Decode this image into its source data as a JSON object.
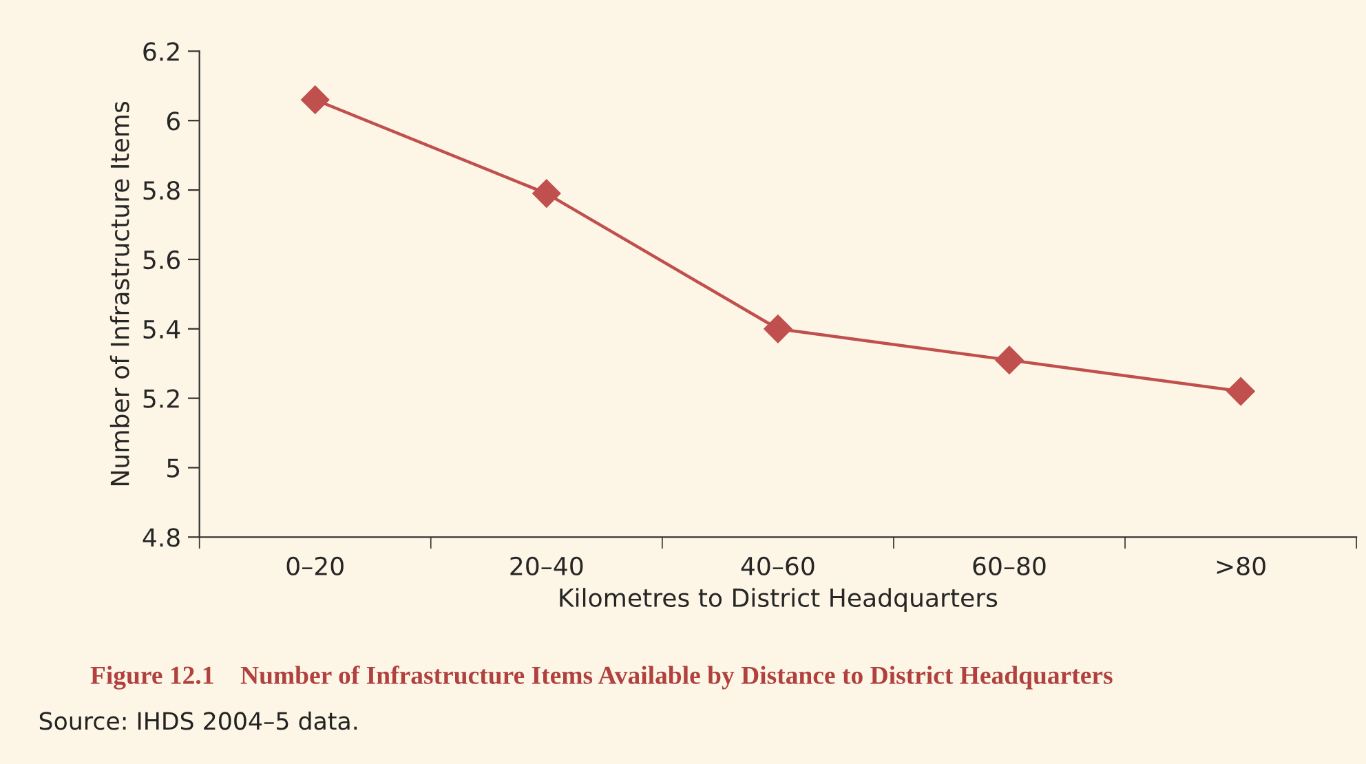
{
  "chart_data": {
    "type": "line",
    "title": "Figure 12.1    Number of Infrastructure Items Available by Distance to District Headquarters",
    "xlabel": "Kilometres to District Headquarters",
    "ylabel": "Number of Infrastructure Items",
    "categories": [
      "0–20",
      "20–40",
      "40–60",
      "60–80",
      ">80"
    ],
    "series": [
      {
        "color": "#c0504d",
        "values": [
          6.06,
          5.79,
          5.4,
          5.31,
          5.22
        ]
      }
    ],
    "ylim": [
      4.8,
      6.2
    ],
    "yticks": [
      {
        "value": 4.8,
        "label": "4.8"
      },
      {
        "value": 5,
        "label": "5"
      },
      {
        "value": 5.2,
        "label": "5.2"
      },
      {
        "value": 5.4,
        "label": "5.4"
      },
      {
        "value": 5.6,
        "label": "5.6"
      },
      {
        "value": 5.8,
        "label": "5.8"
      },
      {
        "value": 6,
        "label": "6"
      },
      {
        "value": 6.2,
        "label": "6.2"
      }
    ],
    "grid": false,
    "legend": false,
    "marker": "diamond",
    "line_style": "solid",
    "annotations": [
      "Source: IHDS 2004–5 data."
    ]
  }
}
